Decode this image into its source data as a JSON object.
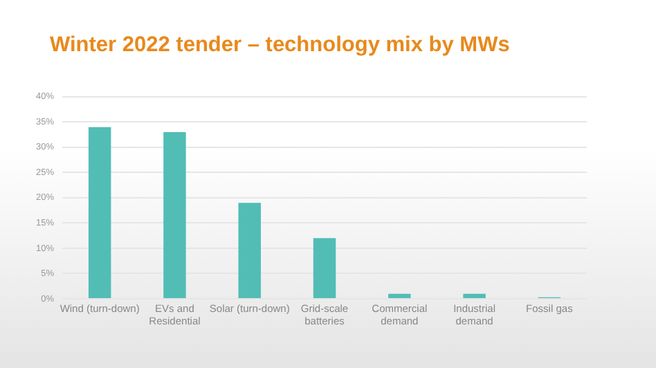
{
  "chart_data": {
    "type": "bar",
    "title": "Winter 2022 tender – technology mix by MWs",
    "categories": [
      "Wind (turn-down)",
      "EVs and\nResidential",
      "Solar (turn-down)",
      "Grid-scale\nbatteries",
      "Commercial\ndemand",
      "Industrial\ndemand",
      "Fossil gas"
    ],
    "values": [
      34,
      33,
      19,
      12,
      1,
      1,
      0.3
    ],
    "color": "#52bdb5",
    "ylim": [
      0,
      40
    ],
    "yticks": [
      {
        "value": 0,
        "label": "0%"
      },
      {
        "value": 5,
        "label": "5%"
      },
      {
        "value": 10,
        "label": "10%"
      },
      {
        "value": 15,
        "label": "15%"
      },
      {
        "value": 20,
        "label": "20%"
      },
      {
        "value": 25,
        "label": "25%"
      },
      {
        "value": 30,
        "label": "30%"
      },
      {
        "value": 35,
        "label": "35%"
      },
      {
        "value": 40,
        "label": "40%"
      }
    ],
    "grid": "y"
  }
}
